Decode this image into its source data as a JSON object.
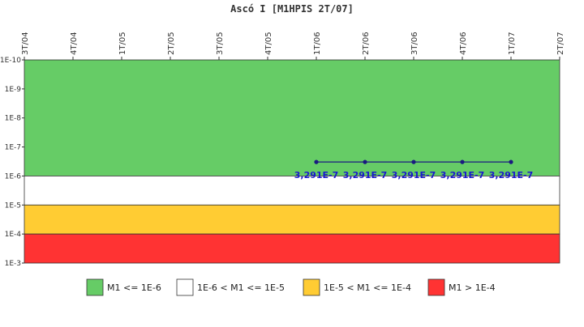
{
  "chart_data": {
    "type": "line",
    "title": "Ascó I [M1HPIS 2T/07]",
    "xlabel": "",
    "ylabel": "",
    "y_scale": "log",
    "ylim": [
      1e-10,
      0.001
    ],
    "x_categories": [
      "3T/04",
      "4T/04",
      "1T/05",
      "2T/05",
      "3T/05",
      "4T/05",
      "1T/06",
      "2T/06",
      "3T/06",
      "4T/06",
      "1T/07",
      "2T/07"
    ],
    "y_ticks": [
      {
        "value": 1e-10,
        "label": "1E-10"
      },
      {
        "value": 1e-09,
        "label": "1E-9"
      },
      {
        "value": 1e-08,
        "label": "1E-8"
      },
      {
        "value": 1e-07,
        "label": "1E-7"
      },
      {
        "value": 1e-06,
        "label": "1E-6"
      },
      {
        "value": 1e-05,
        "label": "1E-5"
      },
      {
        "value": 0.0001,
        "label": "1E-4"
      },
      {
        "value": 0.001,
        "label": "1E-3"
      }
    ],
    "bands": [
      {
        "from": 1e-10,
        "to": 1e-06,
        "color": "#66cc66",
        "label": "M1 <= 1E-6"
      },
      {
        "from": 1e-06,
        "to": 1e-05,
        "color": "#ffffff",
        "label": "1E-6 < M1 <= 1E-5"
      },
      {
        "from": 1e-05,
        "to": 0.0001,
        "color": "#ffcc33",
        "label": "1E-5 < M1 <= 1E-4"
      },
      {
        "from": 0.0001,
        "to": 0.001,
        "color": "#ff3333",
        "label": "M1 > 1E-4"
      }
    ],
    "series": [
      {
        "color": "#1a1a80",
        "points": [
          {
            "x": "1T/06",
            "y": 3.291e-07,
            "label": "3,291E-7"
          },
          {
            "x": "2T/06",
            "y": 3.291e-07,
            "label": "3,291E-7"
          },
          {
            "x": "3T/06",
            "y": 3.291e-07,
            "label": "3,291E-7"
          },
          {
            "x": "4T/06",
            "y": 3.291e-07,
            "label": "3,291E-7"
          },
          {
            "x": "1T/07",
            "y": 3.291e-07,
            "label": "3,291E-7"
          }
        ]
      }
    ],
    "grid": false,
    "legend": "bottom"
  }
}
